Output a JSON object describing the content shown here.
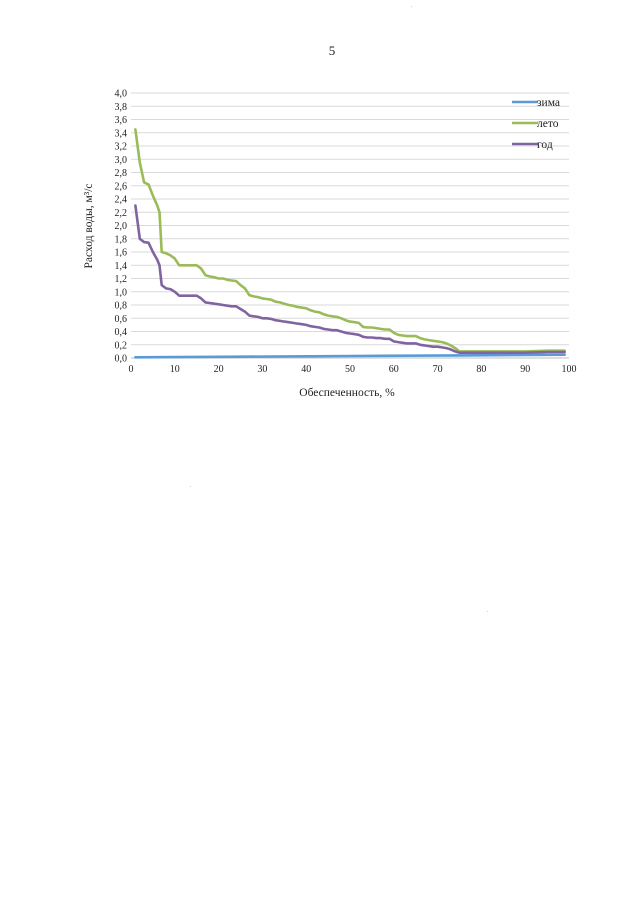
{
  "page": {
    "number": "5"
  },
  "chart_data": {
    "type": "line",
    "title": "",
    "xlabel": "Обеспеченность, %",
    "ylabel": "Расход воды, м³/с",
    "xlim": [
      0,
      100
    ],
    "ylim": [
      0,
      4.0
    ],
    "x_ticks": [
      "0",
      "10",
      "20",
      "30",
      "40",
      "50",
      "60",
      "70",
      "80",
      "90",
      "100"
    ],
    "y_ticks": [
      "0,0",
      "0,2",
      "0,4",
      "0,6",
      "0,8",
      "1,0",
      "1,2",
      "1,4",
      "1,6",
      "1,8",
      "2,0",
      "2,2",
      "2,4",
      "2,6",
      "2,8",
      "3,0",
      "3,2",
      "3,4",
      "3,6",
      "3,8",
      "4,0"
    ],
    "grid": "horizontal",
    "legend_position": "top-right",
    "series": [
      {
        "name": "зима",
        "color": "#5b9bd5",
        "points": [
          [
            1,
            0.01
          ],
          [
            25,
            0.02
          ],
          [
            50,
            0.03
          ],
          [
            75,
            0.04
          ],
          [
            99,
            0.05
          ]
        ]
      },
      {
        "name": "лето",
        "color": "#9bbb59",
        "points": [
          [
            1,
            3.45
          ],
          [
            2,
            2.95
          ],
          [
            3,
            2.65
          ],
          [
            4,
            2.62
          ],
          [
            5,
            2.45
          ],
          [
            6,
            2.3
          ],
          [
            6.5,
            2.2
          ],
          [
            7,
            1.6
          ],
          [
            8,
            1.58
          ],
          [
            9,
            1.55
          ],
          [
            10,
            1.5
          ],
          [
            11,
            1.4
          ],
          [
            12,
            1.4
          ],
          [
            13,
            1.4
          ],
          [
            14,
            1.4
          ],
          [
            15,
            1.4
          ],
          [
            16,
            1.35
          ],
          [
            17,
            1.25
          ],
          [
            18,
            1.23
          ],
          [
            19,
            1.22
          ],
          [
            20,
            1.2
          ],
          [
            21,
            1.2
          ],
          [
            22,
            1.18
          ],
          [
            23,
            1.17
          ],
          [
            24,
            1.16
          ],
          [
            25,
            1.1
          ],
          [
            26,
            1.05
          ],
          [
            27,
            0.95
          ],
          [
            28,
            0.93
          ],
          [
            29,
            0.92
          ],
          [
            30,
            0.9
          ],
          [
            31,
            0.89
          ],
          [
            32,
            0.88
          ],
          [
            33,
            0.85
          ],
          [
            34,
            0.84
          ],
          [
            35,
            0.82
          ],
          [
            36,
            0.8
          ],
          [
            37,
            0.79
          ],
          [
            38,
            0.77
          ],
          [
            39,
            0.76
          ],
          [
            40,
            0.75
          ],
          [
            41,
            0.72
          ],
          [
            42,
            0.7
          ],
          [
            43,
            0.69
          ],
          [
            44,
            0.66
          ],
          [
            45,
            0.64
          ],
          [
            46,
            0.63
          ],
          [
            47,
            0.62
          ],
          [
            48,
            0.6
          ],
          [
            49,
            0.57
          ],
          [
            50,
            0.55
          ],
          [
            51,
            0.54
          ],
          [
            52,
            0.53
          ],
          [
            53,
            0.47
          ],
          [
            54,
            0.46
          ],
          [
            55,
            0.46
          ],
          [
            56,
            0.45
          ],
          [
            57,
            0.44
          ],
          [
            58,
            0.43
          ],
          [
            59,
            0.43
          ],
          [
            60,
            0.38
          ],
          [
            61,
            0.35
          ],
          [
            62,
            0.34
          ],
          [
            63,
            0.33
          ],
          [
            64,
            0.33
          ],
          [
            65,
            0.33
          ],
          [
            66,
            0.3
          ],
          [
            67,
            0.28
          ],
          [
            68,
            0.27
          ],
          [
            69,
            0.26
          ],
          [
            70,
            0.25
          ],
          [
            71,
            0.24
          ],
          [
            72,
            0.22
          ],
          [
            73,
            0.19
          ],
          [
            74,
            0.15
          ],
          [
            75,
            0.1
          ],
          [
            76,
            0.1
          ],
          [
            80,
            0.1
          ],
          [
            85,
            0.1
          ],
          [
            90,
            0.1
          ],
          [
            95,
            0.11
          ],
          [
            99,
            0.11
          ]
        ]
      },
      {
        "name": "год",
        "color": "#8064a2",
        "points": [
          [
            1,
            2.3
          ],
          [
            2,
            1.8
          ],
          [
            3,
            1.75
          ],
          [
            4,
            1.74
          ],
          [
            5,
            1.6
          ],
          [
            6,
            1.48
          ],
          [
            6.5,
            1.4
          ],
          [
            7,
            1.1
          ],
          [
            8,
            1.05
          ],
          [
            9,
            1.04
          ],
          [
            10,
            1.0
          ],
          [
            11,
            0.94
          ],
          [
            12,
            0.94
          ],
          [
            13,
            0.94
          ],
          [
            14,
            0.94
          ],
          [
            15,
            0.94
          ],
          [
            16,
            0.9
          ],
          [
            17,
            0.84
          ],
          [
            18,
            0.83
          ],
          [
            19,
            0.82
          ],
          [
            20,
            0.81
          ],
          [
            21,
            0.8
          ],
          [
            22,
            0.79
          ],
          [
            23,
            0.78
          ],
          [
            24,
            0.78
          ],
          [
            25,
            0.74
          ],
          [
            26,
            0.7
          ],
          [
            27,
            0.64
          ],
          [
            28,
            0.63
          ],
          [
            29,
            0.62
          ],
          [
            30,
            0.6
          ],
          [
            31,
            0.6
          ],
          [
            32,
            0.59
          ],
          [
            33,
            0.57
          ],
          [
            34,
            0.56
          ],
          [
            35,
            0.55
          ],
          [
            36,
            0.54
          ],
          [
            37,
            0.53
          ],
          [
            38,
            0.52
          ],
          [
            39,
            0.51
          ],
          [
            40,
            0.5
          ],
          [
            41,
            0.48
          ],
          [
            42,
            0.47
          ],
          [
            43,
            0.46
          ],
          [
            44,
            0.44
          ],
          [
            45,
            0.43
          ],
          [
            46,
            0.42
          ],
          [
            47,
            0.42
          ],
          [
            48,
            0.4
          ],
          [
            49,
            0.38
          ],
          [
            50,
            0.37
          ],
          [
            51,
            0.36
          ],
          [
            52,
            0.35
          ],
          [
            53,
            0.32
          ],
          [
            54,
            0.31
          ],
          [
            55,
            0.31
          ],
          [
            56,
            0.3
          ],
          [
            57,
            0.3
          ],
          [
            58,
            0.29
          ],
          [
            59,
            0.29
          ],
          [
            60,
            0.25
          ],
          [
            61,
            0.24
          ],
          [
            62,
            0.23
          ],
          [
            63,
            0.22
          ],
          [
            64,
            0.22
          ],
          [
            65,
            0.22
          ],
          [
            66,
            0.2
          ],
          [
            67,
            0.19
          ],
          [
            68,
            0.18
          ],
          [
            69,
            0.17
          ],
          [
            70,
            0.17
          ],
          [
            71,
            0.16
          ],
          [
            72,
            0.15
          ],
          [
            73,
            0.13
          ],
          [
            74,
            0.1
          ],
          [
            75,
            0.08
          ],
          [
            76,
            0.08
          ],
          [
            80,
            0.08
          ],
          [
            85,
            0.08
          ],
          [
            90,
            0.08
          ],
          [
            95,
            0.09
          ],
          [
            99,
            0.09
          ]
        ]
      }
    ]
  }
}
